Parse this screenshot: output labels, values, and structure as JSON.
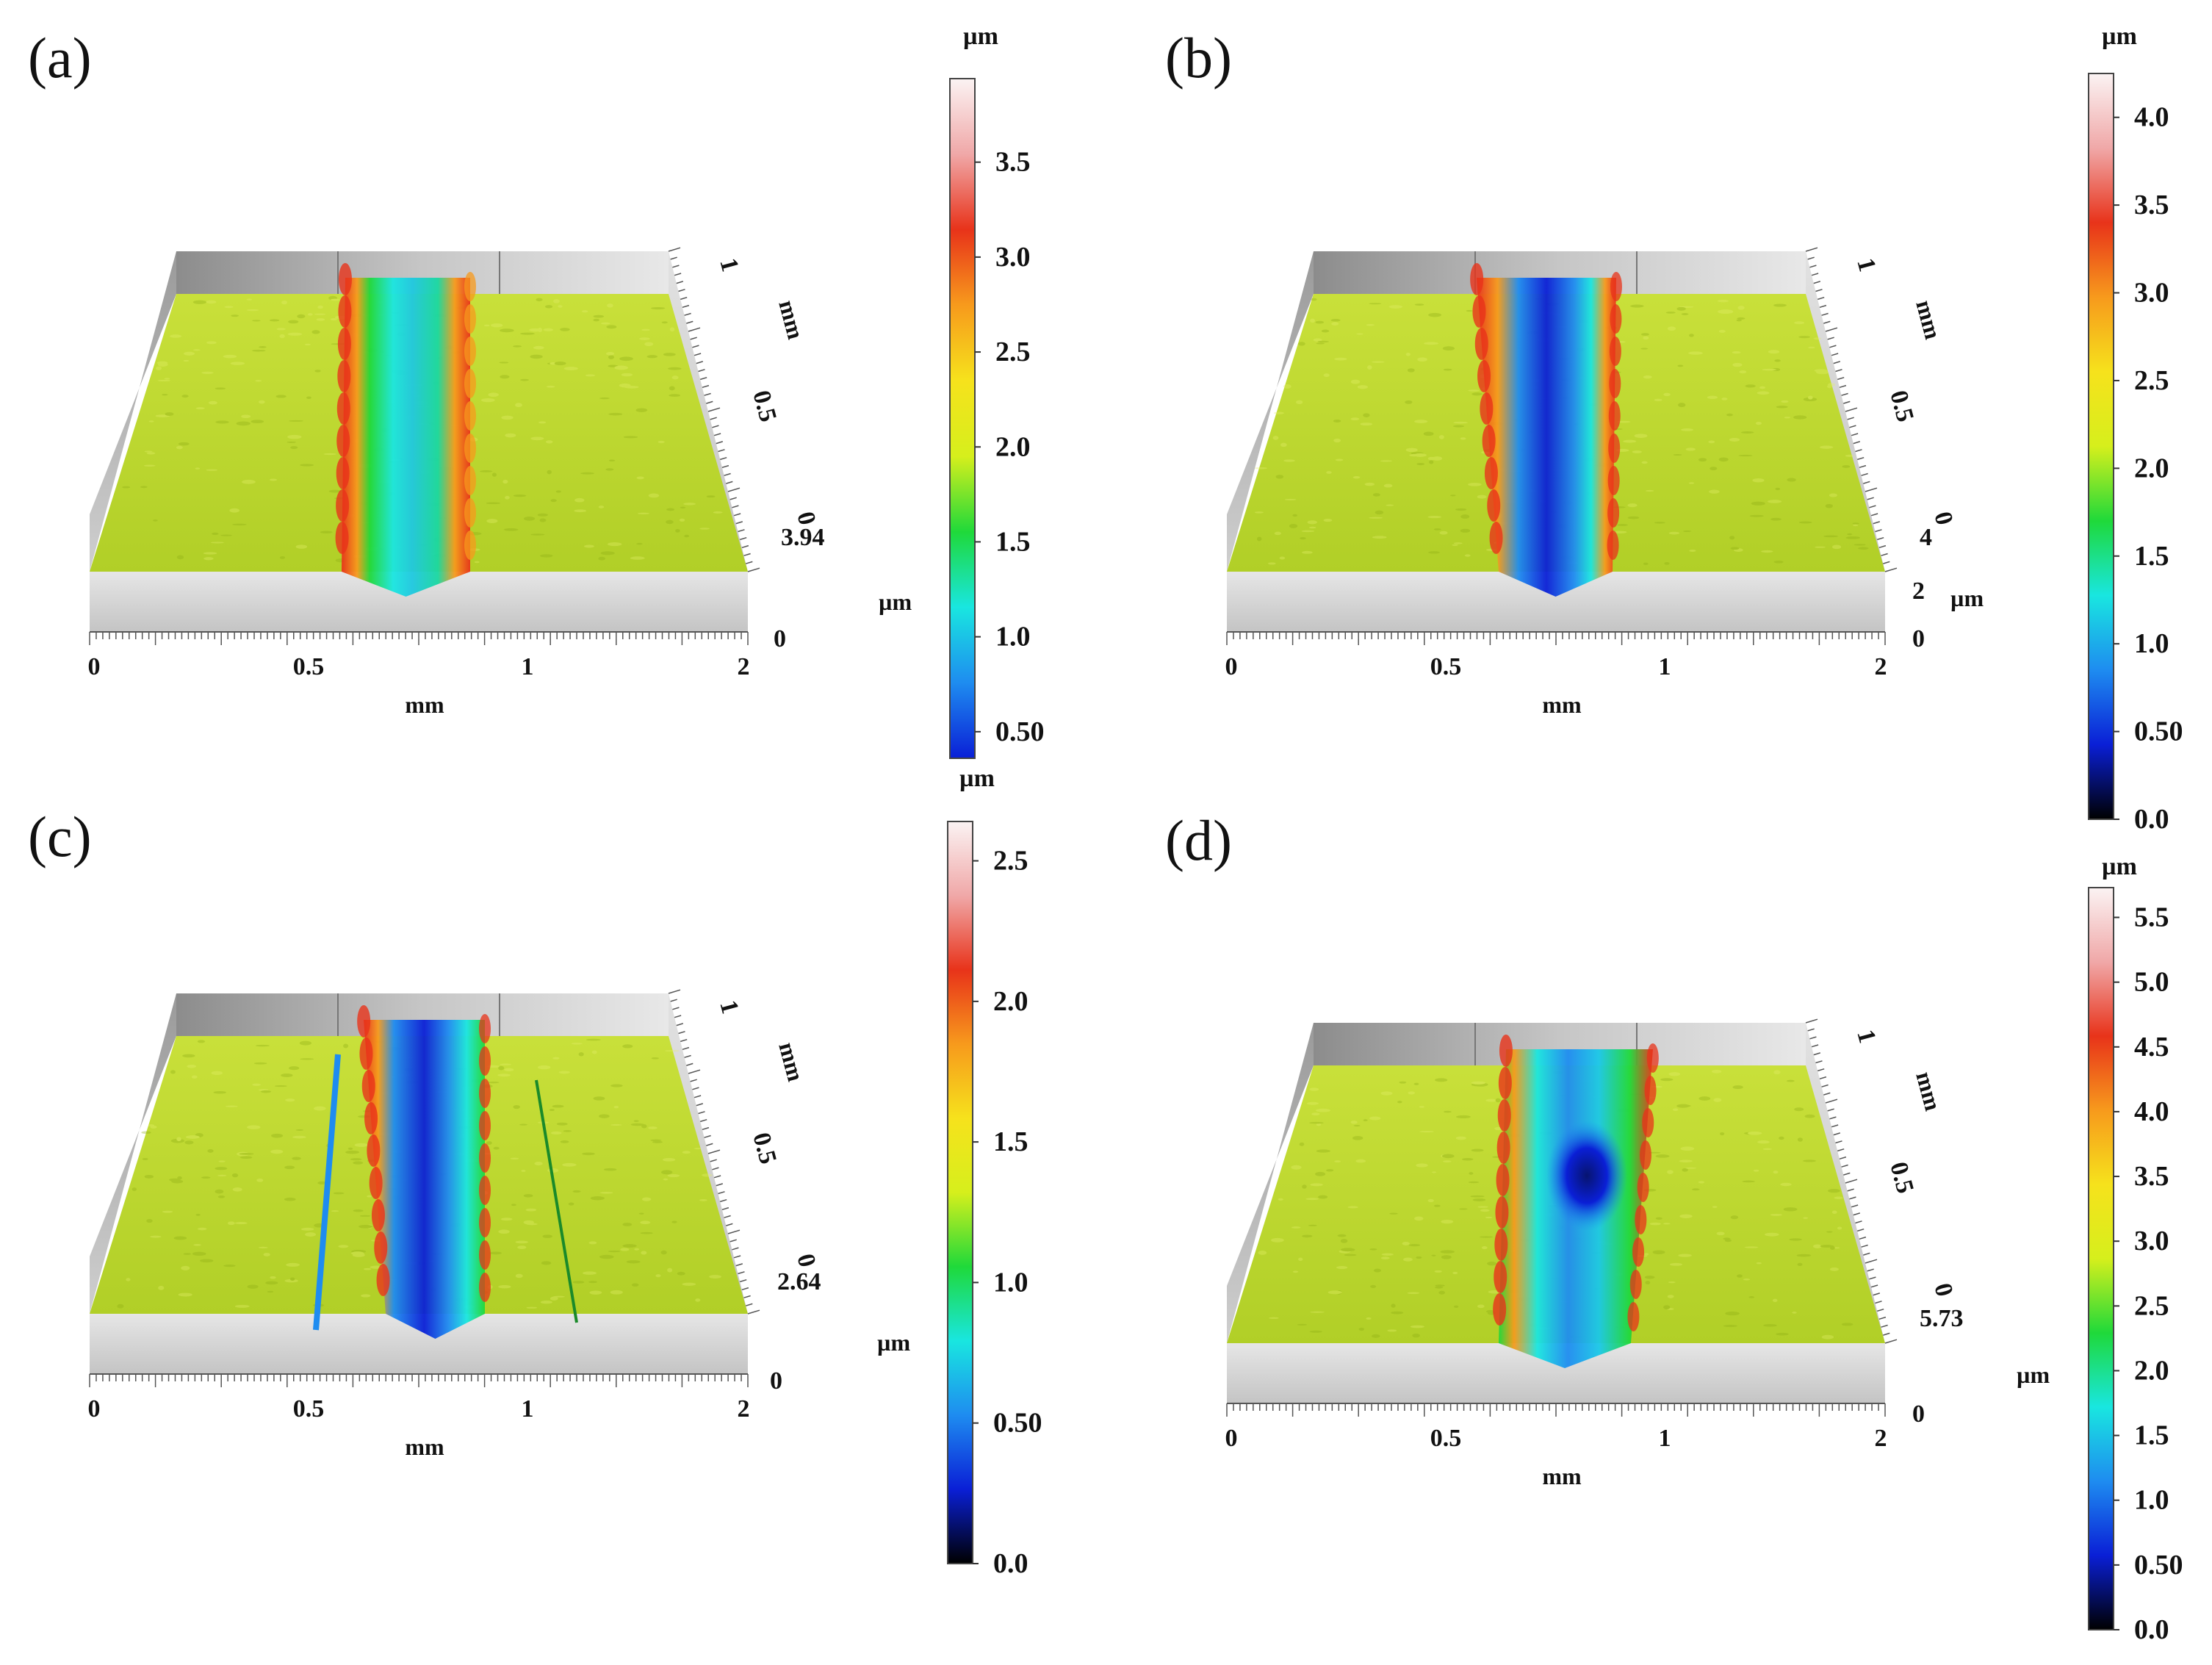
{
  "panels": [
    {
      "label": "(a)",
      "x_ticks": [
        "0",
        "0.5",
        "1",
        "2"
      ],
      "x_unit": "mm",
      "y_ticks": [
        "1",
        "0.5",
        "0"
      ],
      "y_unit": "mm",
      "z_ticks": [
        "3.94",
        "0"
      ],
      "z_unit": "µm",
      "colorbar_unit": "µm",
      "colorbar_ticks": [
        "3.5",
        "3.0",
        "2.5",
        "2.0",
        "1.5",
        "1.0",
        "0.50"
      ],
      "colorbar_range": [
        0.36,
        3.94
      ]
    },
    {
      "label": "(b)",
      "x_ticks": [
        "0",
        "0.5",
        "1",
        "2"
      ],
      "x_unit": "mm",
      "y_ticks": [
        "1",
        "0.5",
        "0"
      ],
      "y_unit": "mm",
      "z_ticks": [
        "4",
        "2",
        "0"
      ],
      "z_unit": "µm",
      "colorbar_unit": "µm",
      "colorbar_ticks": [
        "4.0",
        "3.5",
        "3.0",
        "2.5",
        "2.0",
        "1.5",
        "1.0",
        "0.50",
        "0.0"
      ],
      "colorbar_range": [
        0.0,
        4.25
      ]
    },
    {
      "label": "(c)",
      "x_ticks": [
        "0",
        "0.5",
        "1",
        "2"
      ],
      "x_unit": "mm",
      "y_ticks": [
        "1",
        "0.5",
        "0"
      ],
      "y_unit": "mm",
      "z_ticks": [
        "2.64",
        "0"
      ],
      "z_unit": "µm",
      "colorbar_unit": "µm",
      "colorbar_ticks": [
        "2.5",
        "2.0",
        "1.5",
        "1.0",
        "0.50",
        "0.0"
      ],
      "colorbar_range": [
        0.0,
        2.64
      ]
    },
    {
      "label": "(d)",
      "x_ticks": [
        "0",
        "0.5",
        "1",
        "2"
      ],
      "x_unit": "mm",
      "y_ticks": [
        "1",
        "0.5",
        "0"
      ],
      "y_unit": "mm",
      "z_ticks": [
        "5.73",
        "0"
      ],
      "z_unit": "µm",
      "colorbar_unit": "µm",
      "colorbar_ticks": [
        "5.5",
        "5.0",
        "4.5",
        "4.0",
        "3.5",
        "3.0",
        "2.5",
        "2.0",
        "1.5",
        "1.0",
        "0.50",
        "0.0"
      ],
      "colorbar_range": [
        0.0,
        5.73
      ]
    }
  ],
  "colors": {
    "surface": "#b8d630",
    "colormap": [
      "#000000",
      "#0a1fd6",
      "#1e8cf0",
      "#19e6e0",
      "#1fd93a",
      "#d6ef1c",
      "#f6e21c",
      "#f79a1c",
      "#e8331a",
      "#f0a8a8",
      "#fbf3f3"
    ]
  }
}
